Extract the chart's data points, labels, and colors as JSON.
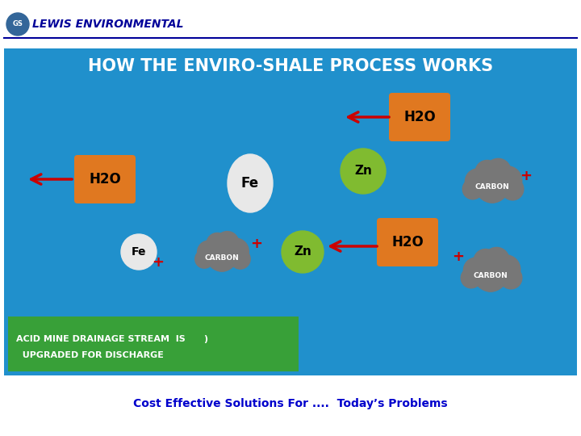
{
  "bg_color": "#ffffff",
  "main_bg": "#2090cc",
  "title_text": "HOW THE ENVIRO-SHALE PROCESS WORKS",
  "title_color": "#ffffff",
  "header_text": "LEWIS ENVIRONMENTAL",
  "footer_text": "Cost Effective Solutions For ....  Today’s Problems",
  "footer_color": "#0000cc",
  "orange_color": "#e07820",
  "green_color": "#80bb30",
  "white_color": "#f0f0f0",
  "gray_color": "#777777",
  "red_arrow": "#cc0000",
  "green_box_color": "#38a038",
  "carbon_text": "CARBON",
  "figw": 7.2,
  "figh": 5.4,
  "dpi": 100
}
